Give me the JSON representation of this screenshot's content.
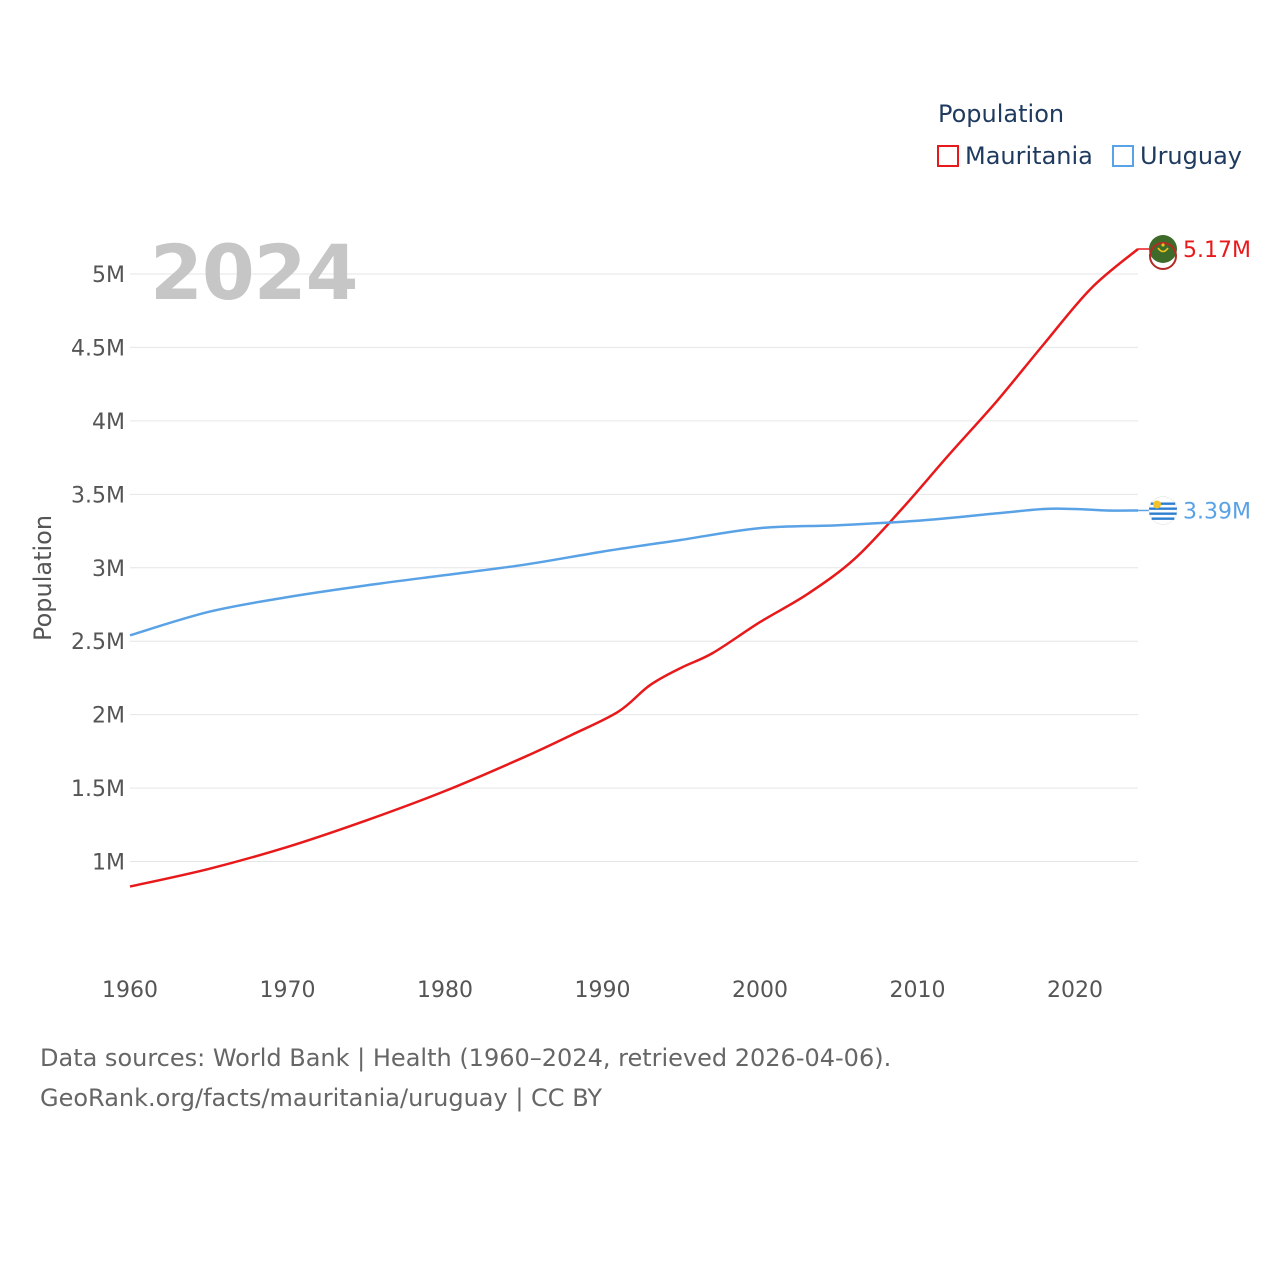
{
  "legend": {
    "title": "Population",
    "items": [
      {
        "name": "Mauritania",
        "color": "#e8191b"
      },
      {
        "name": "Uruguay",
        "color": "#5aa2e6"
      }
    ]
  },
  "year_watermark": "2024",
  "footer": {
    "line1": "Data sources: World Bank | Health (1960–2024, retrieved 2026-04-06).",
    "line2": "GeoRank.org/facts/mauritania/uruguay | CC BY"
  },
  "chart_data": {
    "type": "line",
    "title": "Population",
    "ylabel": "Population",
    "xlabel": "",
    "xlim": [
      1960,
      2024
    ],
    "ylim": [
      0.5,
      5.17
    ],
    "y_ticks": [
      {
        "value": 1.0,
        "label": "1M"
      },
      {
        "value": 1.5,
        "label": "1.5M"
      },
      {
        "value": 2.0,
        "label": "2M"
      },
      {
        "value": 2.5,
        "label": "2.5M"
      },
      {
        "value": 3.0,
        "label": "3M"
      },
      {
        "value": 3.5,
        "label": "3.5M"
      },
      {
        "value": 4.0,
        "label": "4M"
      },
      {
        "value": 4.5,
        "label": "4.5M"
      },
      {
        "value": 5.0,
        "label": "5M"
      }
    ],
    "x_ticks": [
      "1960",
      "1970",
      "1980",
      "1990",
      "2000",
      "2010",
      "2020"
    ],
    "series": [
      {
        "name": "Mauritania",
        "color": "#e8191b",
        "end_label": "5.17M",
        "flag": "mauritania-flag",
        "x": [
          1960,
          1965,
          1970,
          1975,
          1980,
          1985,
          1988,
          1991,
          1993,
          1995,
          1997,
          2000,
          2003,
          2006,
          2009,
          2012,
          2015,
          2018,
          2021,
          2024
        ],
        "y": [
          0.83,
          0.95,
          1.1,
          1.28,
          1.48,
          1.71,
          1.86,
          2.02,
          2.2,
          2.32,
          2.42,
          2.63,
          2.82,
          3.06,
          3.4,
          3.77,
          4.13,
          4.52,
          4.9,
          5.17
        ]
      },
      {
        "name": "Uruguay",
        "color": "#5aa2e6",
        "end_label": "3.39M",
        "flag": "uruguay-flag",
        "x": [
          1960,
          1965,
          1970,
          1975,
          1980,
          1985,
          1990,
          1995,
          2000,
          2005,
          2010,
          2015,
          2018,
          2020,
          2022,
          2024
        ],
        "y": [
          2.54,
          2.7,
          2.8,
          2.88,
          2.95,
          3.02,
          3.11,
          3.19,
          3.27,
          3.29,
          3.32,
          3.37,
          3.4,
          3.4,
          3.39,
          3.39
        ]
      }
    ]
  }
}
